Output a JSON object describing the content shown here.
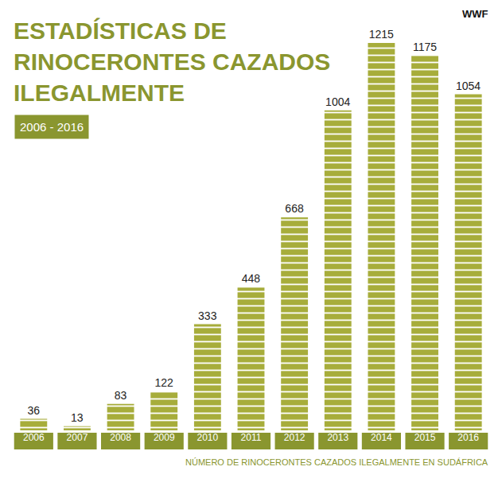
{
  "chart_data": {
    "type": "bar",
    "title": "ESTADÍSTICAS DE RINOCERONTES CAZADOS ILEGALMENTE",
    "subtitle": "2006 - 2016",
    "xlabel": "NÚMERO DE RINOCERONTES CAZADOS ILEGALMENTE EN SUDÁFRICA",
    "categories": [
      "2006",
      "2007",
      "2008",
      "2009",
      "2010",
      "2011",
      "2012",
      "2013",
      "2014",
      "2015",
      "2016"
    ],
    "values": [
      36,
      13,
      83,
      122,
      333,
      448,
      668,
      1004,
      1215,
      1175,
      1054
    ],
    "color": "#a7ad3b",
    "ylim": [
      0,
      1300
    ],
    "grid": false,
    "data_labels": true,
    "tick_labels": "x",
    "annotations": [
      "WWF"
    ]
  }
}
